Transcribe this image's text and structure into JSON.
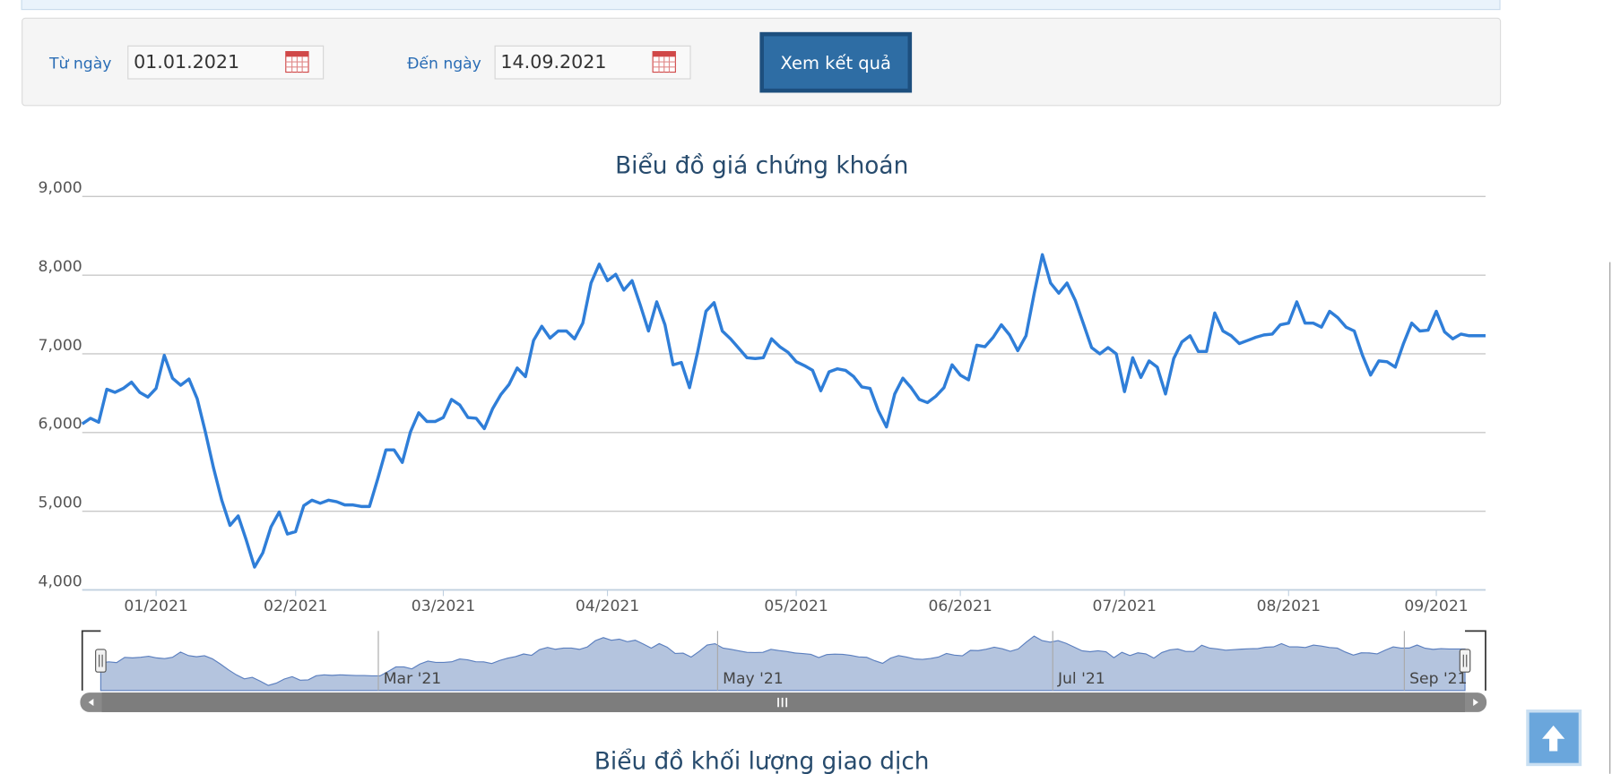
{
  "form": {
    "from_label": "Từ ngày",
    "from_value": "01.01.2021",
    "to_label": "Đến ngày",
    "to_value": "14.09.2021",
    "button": "Xem kết quả"
  },
  "chart_data": {
    "type": "line",
    "title": "Biểu đồ giá chứng khoán",
    "categories": [
      null,
      null,
      null,
      null,
      null,
      null,
      null,
      null,
      null,
      "01/2021",
      null,
      null,
      null,
      null,
      null,
      null,
      null,
      null,
      null,
      null,
      null,
      null,
      null,
      null,
      null,
      null,
      "02/2021",
      null,
      null,
      null,
      null,
      null,
      null,
      null,
      null,
      null,
      null,
      null,
      null,
      null,
      null,
      null,
      null,
      null,
      "03/2021",
      null,
      null,
      null,
      null,
      null,
      null,
      null,
      null,
      null,
      null,
      null,
      null,
      null,
      null,
      null,
      null,
      null,
      null,
      null,
      "04/2021",
      null,
      null,
      null,
      null,
      null,
      null,
      null,
      null,
      null,
      null,
      null,
      null,
      null,
      null,
      null,
      null,
      null,
      null,
      null,
      null,
      null,
      null,
      "05/2021",
      null,
      null,
      null,
      null,
      null,
      null,
      null,
      null,
      null,
      null,
      null,
      null,
      null,
      null,
      null,
      null,
      null,
      null,
      null,
      "06/2021",
      null,
      null,
      null,
      null,
      null,
      null,
      null,
      null,
      null,
      null,
      null,
      null,
      null,
      null,
      null,
      null,
      null,
      null,
      null,
      "07/2021",
      null,
      null,
      null,
      null,
      null,
      null,
      null,
      null,
      null,
      null,
      null,
      null,
      null,
      null,
      null,
      null,
      null,
      null,
      null,
      "08/2021",
      null,
      null,
      null,
      null,
      null,
      null,
      null,
      null,
      null,
      null,
      null,
      null,
      null,
      null,
      null,
      null,
      null,
      "09/2021",
      null,
      null,
      null,
      null,
      null,
      null
    ],
    "values": [
      6110,
      6180,
      6130,
      6550,
      6510,
      6560,
      6640,
      6510,
      6450,
      6560,
      6980,
      6690,
      6600,
      6680,
      6430,
      6010,
      5550,
      5140,
      4820,
      4940,
      4630,
      4290,
      4470,
      4800,
      4990,
      4710,
      4740,
      5070,
      5140,
      5100,
      5140,
      5120,
      5080,
      5080,
      5060,
      5060,
      5410,
      5780,
      5780,
      5620,
      6010,
      6250,
      6140,
      6140,
      6190,
      6420,
      6350,
      6190,
      6180,
      6050,
      6300,
      6480,
      6610,
      6820,
      6710,
      7170,
      7350,
      7200,
      7290,
      7290,
      7190,
      7390,
      7900,
      8140,
      7930,
      8010,
      7810,
      7930,
      7620,
      7290,
      7660,
      7370,
      6860,
      6890,
      6570,
      7030,
      7540,
      7650,
      7290,
      7190,
      7070,
      6950,
      6940,
      6950,
      7190,
      7090,
      7020,
      6900,
      6850,
      6790,
      6530,
      6770,
      6810,
      6790,
      6710,
      6580,
      6560,
      6280,
      6070,
      6490,
      6690,
      6570,
      6420,
      6380,
      6460,
      6570,
      6860,
      6730,
      6670,
      7110,
      7090,
      7210,
      7370,
      7240,
      7040,
      7230,
      7770,
      8260,
      7900,
      7770,
      7900,
      7680,
      7380,
      7080,
      7000,
      7080,
      7000,
      6520,
      6950,
      6700,
      6910,
      6830,
      6490,
      6940,
      7150,
      7230,
      7030,
      7030,
      7520,
      7290,
      7230,
      7130,
      7170,
      7210,
      7240,
      7250,
      7370,
      7390,
      7660,
      7390,
      7390,
      7340,
      7540,
      7460,
      7340,
      7290,
      6980,
      6730,
      6910,
      6900,
      6830,
      7130,
      7390,
      7290,
      7300,
      7540,
      7280,
      7190,
      7250,
      7230,
      7230,
      7230
    ],
    "color": "#2f7ed8",
    "ylim": [
      4000,
      9000
    ],
    "yticks": [
      {
        "value": 4000,
        "label": "4,000"
      },
      {
        "value": 5000,
        "label": "5,000"
      },
      {
        "value": 6000,
        "label": "6,000"
      },
      {
        "value": 7000,
        "label": "7,000"
      },
      {
        "value": 8000,
        "label": "8,000"
      },
      {
        "value": 9000,
        "label": "9,000"
      }
    ],
    "grid": true
  },
  "navigator": {
    "labels": [
      "Mar '21",
      "May '21",
      "Jul '21",
      "Sep '21"
    ]
  },
  "next_chart_title": "Biểu đồ khối lượng giao dịch"
}
